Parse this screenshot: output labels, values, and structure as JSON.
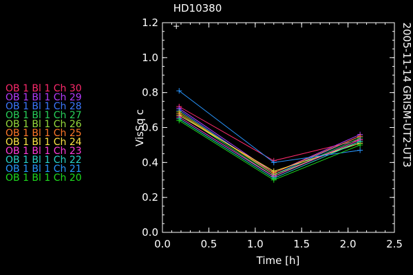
{
  "chart_data": {
    "type": "line",
    "title": "HD10380",
    "side_label": "2005-11-14 GRISM-UT2-UT3",
    "xlabel": "Time [h]",
    "ylabel": "VisSq c",
    "xlim": [
      0.0,
      2.5
    ],
    "ylim": [
      0.0,
      1.2
    ],
    "xticks": [
      "0.0",
      "0.5",
      "1.0",
      "1.5",
      "2.0",
      "2.5"
    ],
    "yticks": [
      "0.0",
      "0.2",
      "0.4",
      "0.6",
      "0.8",
      "1.0",
      "1.2"
    ],
    "grid": false,
    "legend_position": "left",
    "x": [
      0.18,
      1.2,
      2.13
    ],
    "series": [
      {
        "name": "OB 1 Bl 1 Ch 30",
        "color": "#ff2a6d",
        "values": [
          0.72,
          0.41,
          0.53
        ]
      },
      {
        "name": "OB 1 Bl 1 Ch 29",
        "color": "#b43cff",
        "values": [
          0.71,
          0.34,
          0.56
        ]
      },
      {
        "name": "OB 1 Bl 1 Ch 28",
        "color": "#3c78ff",
        "values": [
          0.7,
          0.33,
          0.55
        ]
      },
      {
        "name": "OB 1 Bl 1 Ch 27",
        "color": "#28d25a",
        "values": [
          0.68,
          0.32,
          0.54
        ]
      },
      {
        "name": "OB 1 Bl 1 Ch 26",
        "color": "#96dc3c",
        "values": [
          0.69,
          0.33,
          0.52
        ]
      },
      {
        "name": "OB 1 Bl 1 Ch 25",
        "color": "#ff7828",
        "values": [
          0.68,
          0.34,
          0.55
        ]
      },
      {
        "name": "OB 1 Bl 1 Ch 24",
        "color": "#ffe646",
        "values": [
          0.67,
          0.35,
          0.51
        ]
      },
      {
        "name": "OB 1 Bl 1 Ch 23",
        "color": "#ff3cdc",
        "values": [
          0.66,
          0.32,
          0.53
        ]
      },
      {
        "name": "OB 1 Bl 1 Ch 22",
        "color": "#28d2c8",
        "values": [
          0.65,
          0.31,
          0.52
        ]
      },
      {
        "name": "OB 1 Bl 1 Ch 21",
        "color": "#2896ff",
        "values": [
          0.81,
          0.4,
          0.47
        ]
      },
      {
        "name": "OB 1 Bl 1 Ch 20",
        "color": "#1edc1e",
        "values": [
          0.64,
          0.3,
          0.5
        ]
      }
    ],
    "marker": {
      "x": 0.15,
      "y": 1.18,
      "color": "#ffffff"
    }
  }
}
